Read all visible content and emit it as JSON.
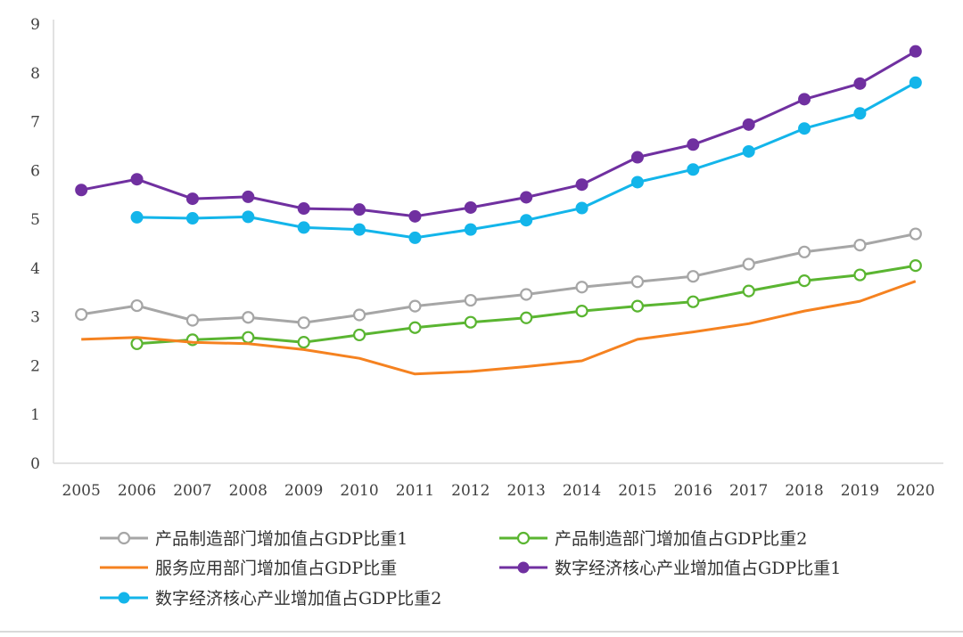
{
  "chart_data": {
    "type": "line",
    "title": "",
    "xlabel": "",
    "ylabel": "",
    "ylim": [
      0,
      9
    ],
    "yticks": [
      0,
      1,
      2,
      3,
      4,
      5,
      6,
      7,
      8,
      9
    ],
    "grid": false,
    "legend_position": "bottom",
    "categories": [
      "2005",
      "2006",
      "2007",
      "2008",
      "2009",
      "2010",
      "2011",
      "2012",
      "2013",
      "2014",
      "2015",
      "2016",
      "2017",
      "2018",
      "2019",
      "2020"
    ],
    "series": [
      {
        "name": "产品制造部门增加值占GDP比重1",
        "color": "#a6a6a6",
        "marker": "hollow",
        "values": [
          3.05,
          3.23,
          2.93,
          2.99,
          2.88,
          3.04,
          3.22,
          3.34,
          3.46,
          3.61,
          3.72,
          3.83,
          4.08,
          4.33,
          4.47,
          4.7
        ]
      },
      {
        "name": "产品制造部门增加值占GDP比重2",
        "color": "#5ab531",
        "marker": "hollow",
        "values": [
          null,
          2.45,
          2.53,
          2.58,
          2.48,
          2.63,
          2.78,
          2.89,
          2.98,
          3.12,
          3.22,
          3.31,
          3.53,
          3.74,
          3.86,
          4.05
        ]
      },
      {
        "name": "服务应用部门增加值占GDP比重",
        "color": "#f58220",
        "marker": "none",
        "values": [
          2.54,
          2.58,
          2.48,
          2.45,
          2.33,
          2.15,
          1.83,
          1.88,
          1.98,
          2.1,
          2.54,
          2.69,
          2.86,
          3.12,
          3.32,
          3.73
        ]
      },
      {
        "name": "数字经济核心产业增加值占GDP比重1",
        "color": "#7030a0",
        "marker": "filled",
        "values": [
          5.6,
          5.82,
          5.42,
          5.46,
          5.22,
          5.2,
          5.06,
          5.24,
          5.45,
          5.71,
          6.27,
          6.53,
          6.94,
          7.46,
          7.78,
          8.44
        ]
      },
      {
        "name": "数字经济核心产业增加值占GDP比重2",
        "color": "#13b5ea",
        "marker": "filled",
        "values": [
          null,
          5.04,
          5.02,
          5.05,
          4.83,
          4.79,
          4.62,
          4.79,
          4.98,
          5.23,
          5.76,
          6.02,
          6.39,
          6.86,
          7.17,
          7.8
        ]
      }
    ]
  }
}
